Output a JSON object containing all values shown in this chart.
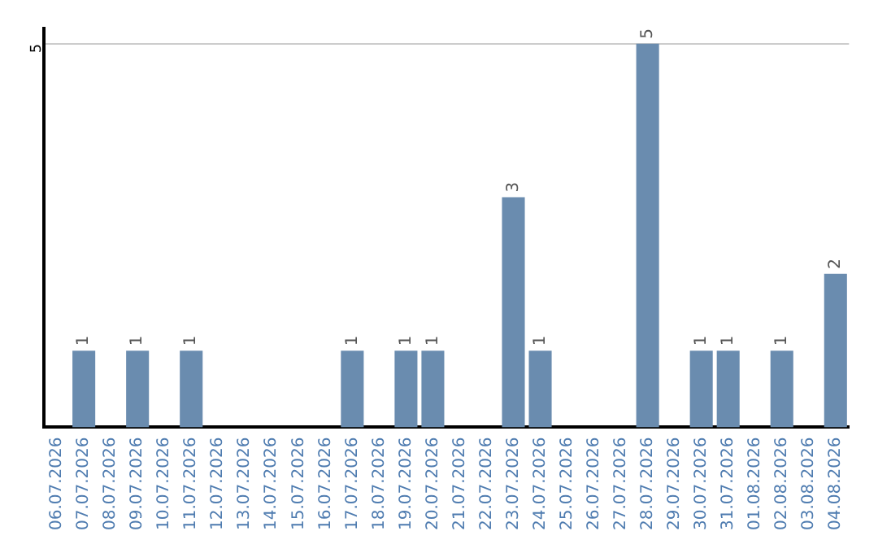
{
  "chart_data": {
    "type": "bar",
    "categories": [
      "06.07.2026",
      "07.07.2026",
      "08.07.2026",
      "09.07.2026",
      "10.07.2026",
      "11.07.2026",
      "12.07.2026",
      "13.07.2026",
      "14.07.2026",
      "15.07.2026",
      "16.07.2026",
      "17.07.2026",
      "18.07.2026",
      "19.07.2026",
      "20.07.2026",
      "21.07.2026",
      "22.07.2026",
      "23.07.2026",
      "24.07.2026",
      "25.07.2026",
      "26.07.2026",
      "27.07.2026",
      "28.07.2026",
      "29.07.2026",
      "30.07.2026",
      "31.07.2026",
      "01.08.2026",
      "02.08.2026",
      "03.08.2026",
      "04.08.2026"
    ],
    "values": [
      0,
      1,
      0,
      1,
      0,
      1,
      0,
      0,
      0,
      0,
      0,
      1,
      0,
      1,
      1,
      0,
      0,
      3,
      1,
      0,
      0,
      0,
      5,
      0,
      1,
      1,
      0,
      1,
      0,
      2
    ],
    "value_labels": [
      null,
      "1",
      null,
      "1",
      null,
      "1",
      null,
      null,
      null,
      null,
      null,
      "1",
      null,
      "1",
      "1",
      null,
      null,
      "3",
      "1",
      null,
      null,
      null,
      "5",
      null,
      "1",
      "1",
      null,
      "1",
      null,
      "2"
    ],
    "color": "#6a8caf",
    "ylim": [
      0,
      5.2
    ],
    "yticks": [
      5
    ],
    "grid": "y",
    "legend": false
  }
}
